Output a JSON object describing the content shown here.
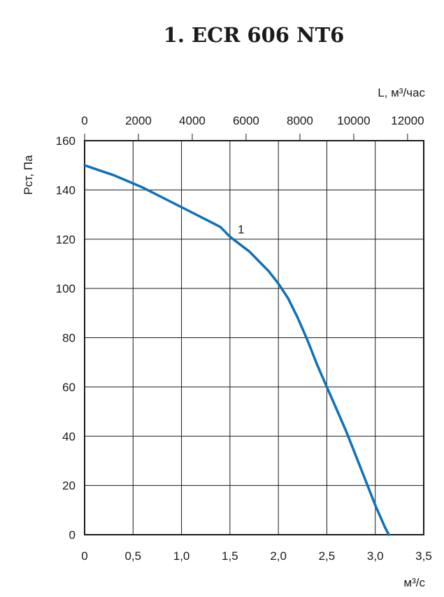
{
  "chart_data": {
    "type": "line",
    "title": "1. ECR 606 NT6",
    "xlabel": "м³/с",
    "ylabel": "Pст, Па",
    "x2label": "L, м³/час",
    "xlim": [
      0,
      3.5
    ],
    "ylim": [
      0,
      160
    ],
    "x2lim": [
      0,
      12600
    ],
    "xticks": [
      "0",
      "0,5",
      "1,0",
      "1,5",
      "2,0",
      "2,5",
      "3,0",
      "3,5"
    ],
    "xtick_values": [
      0,
      0.5,
      1.0,
      1.5,
      2.0,
      2.5,
      3.0,
      3.5
    ],
    "x2ticks": [
      "0",
      "2000",
      "4000",
      "6000",
      "8000",
      "10000",
      "12000"
    ],
    "x2tick_values": [
      0,
      2000,
      4000,
      6000,
      8000,
      10000,
      12000
    ],
    "yticks": [
      "0",
      "20",
      "40",
      "60",
      "80",
      "100",
      "120",
      "140",
      "160"
    ],
    "ytick_values": [
      0,
      20,
      40,
      60,
      80,
      100,
      120,
      140,
      160
    ],
    "grid": true,
    "series": [
      {
        "name": "1",
        "color": "#1070b8",
        "x": [
          0,
          0.3,
          0.6,
          0.9,
          1.1,
          1.25,
          1.4,
          1.5,
          1.6,
          1.7,
          1.8,
          1.9,
          2.0,
          2.1,
          2.2,
          2.3,
          2.4,
          2.5,
          2.6,
          2.7,
          2.8,
          2.9,
          3.0,
          3.1,
          3.14
        ],
        "y": [
          150,
          146,
          141,
          135,
          131,
          128,
          125,
          121,
          118,
          115,
          111,
          107,
          102,
          96,
          88,
          79,
          69,
          60,
          51,
          42,
          32,
          22,
          12,
          3,
          0
        ]
      }
    ],
    "annotations": [
      {
        "text": "1",
        "x": 1.58,
        "y": 124
      }
    ]
  }
}
